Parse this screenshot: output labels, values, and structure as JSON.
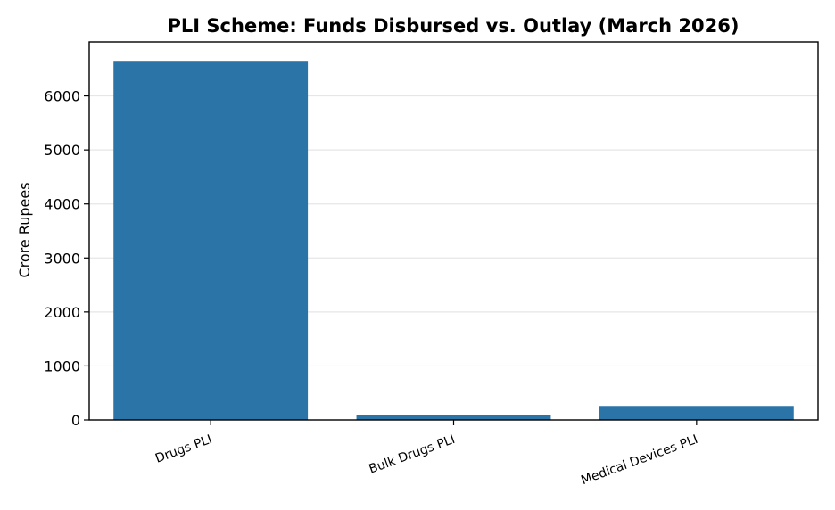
{
  "chart_data": {
    "type": "bar",
    "title": "PLI Scheme: Funds Disbursed vs. Outlay (March 2026)",
    "xlabel": "",
    "ylabel": "Crore Rupees",
    "categories": [
      "Drugs PLI",
      "Bulk Drugs PLI",
      "Medical Devices PLI"
    ],
    "values": [
      6650,
      85,
      260
    ],
    "ylim": [
      0,
      7000
    ],
    "yticks": [
      "0",
      "1000",
      "2000",
      "3000",
      "4000",
      "5000",
      "6000"
    ],
    "grid": "horizontal",
    "bar_color": "#2a74a8",
    "grid_color": "#e6e6e6",
    "axis_color": "#000000"
  }
}
